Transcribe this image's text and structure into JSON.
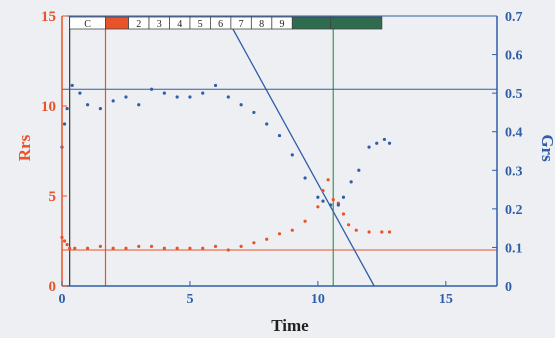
{
  "chart_data": {
    "type": "scatter",
    "xlabel": "Time",
    "ylabel_left": "Rrs",
    "ylabel_right": "Grs",
    "xlim": [
      0,
      17
    ],
    "ylim_left": [
      0,
      15
    ],
    "ylim_right": [
      0,
      0.7
    ],
    "x_ticks": [
      "0",
      "5",
      "10",
      "15"
    ],
    "y_left_ticks": [
      "0",
      "5",
      "10",
      "15"
    ],
    "y_right_ticks": [
      "0",
      "0.1",
      "0.2",
      "0.3",
      "0.4",
      "0.5",
      "0.6",
      "0.7"
    ],
    "segments": [
      {
        "label": "C",
        "x0": 0.3,
        "x1": 1.7,
        "fill": "#ffffff"
      },
      {
        "label": "",
        "x0": 1.7,
        "x1": 2.6,
        "fill": "#e8532a"
      },
      {
        "label": "2",
        "x0": 2.6,
        "x1": 3.4,
        "fill": "#ffffff"
      },
      {
        "label": "3",
        "x0": 3.4,
        "x1": 4.2,
        "fill": "#ffffff"
      },
      {
        "label": "4",
        "x0": 4.2,
        "x1": 5.0,
        "fill": "#ffffff"
      },
      {
        "label": "5",
        "x0": 5.0,
        "x1": 5.8,
        "fill": "#ffffff"
      },
      {
        "label": "6",
        "x0": 5.8,
        "x1": 6.6,
        "fill": "#ffffff"
      },
      {
        "label": "7",
        "x0": 6.6,
        "x1": 7.4,
        "fill": "#ffffff"
      },
      {
        "label": "8",
        "x0": 7.4,
        "x1": 8.2,
        "fill": "#ffffff"
      },
      {
        "label": "9",
        "x0": 8.2,
        "x1": 9.0,
        "fill": "#ffffff"
      },
      {
        "label": "",
        "x0": 9.0,
        "x1": 10.5,
        "fill": "#2e6b4f"
      },
      {
        "label": "",
        "x0": 10.5,
        "x1": 12.5,
        "fill": "#2e6b4f"
      }
    ],
    "reference_lines": {
      "vertical": [
        {
          "x": 0.3,
          "color": "#333333"
        },
        {
          "x": 1.7,
          "color": "#e8532a"
        },
        {
          "x": 10.6,
          "color": "#2e9a5a"
        }
      ],
      "horizontal_left": [
        {
          "y": 2.0,
          "color": "#e8532a"
        }
      ],
      "horizontal_right": [
        {
          "y": 0.51,
          "color": "#2f5ea8"
        }
      ],
      "regression_right": {
        "x0": 6.4,
        "y0": 0.7,
        "x1": 12.2,
        "y1": 0.0,
        "color": "#2f5ea8"
      }
    },
    "series": [
      {
        "name": "Rrs",
        "axis": "left",
        "color": "#e8532a",
        "x": [
          0.0,
          0.1,
          0.2,
          0.3,
          0.5,
          1.0,
          1.5,
          2.0,
          2.5,
          3.0,
          3.5,
          4.0,
          4.5,
          5.0,
          5.5,
          6.0,
          6.5,
          7.0,
          7.5,
          8.0,
          8.5,
          9.0,
          9.5,
          10.0,
          10.2,
          10.4,
          10.6,
          10.8,
          11.0,
          11.2,
          11.5,
          12.0,
          12.5,
          12.8
        ],
        "y": [
          2.7,
          2.5,
          2.3,
          2.1,
          2.1,
          2.1,
          2.2,
          2.1,
          2.1,
          2.2,
          2.2,
          2.1,
          2.1,
          2.1,
          2.1,
          2.2,
          2.0,
          2.2,
          2.4,
          2.6,
          2.9,
          3.1,
          3.6,
          4.4,
          5.3,
          5.9,
          4.8,
          4.6,
          4.0,
          3.4,
          3.1,
          3.0,
          3.0,
          3.0
        ]
      },
      {
        "name": "Grs",
        "axis": "right",
        "color": "#2f5ea8",
        "x": [
          0.0,
          0.1,
          0.2,
          0.4,
          0.7,
          1.0,
          1.5,
          2.0,
          2.5,
          3.0,
          3.5,
          4.0,
          4.5,
          5.0,
          5.5,
          6.0,
          6.5,
          7.0,
          7.5,
          8.0,
          8.5,
          9.0,
          9.5,
          10.0,
          10.2,
          10.5,
          10.8,
          11.0,
          11.3,
          11.6,
          12.0,
          12.3,
          12.6,
          12.8
        ],
        "y": [
          0.36,
          0.42,
          0.46,
          0.52,
          0.5,
          0.47,
          0.46,
          0.48,
          0.49,
          0.47,
          0.51,
          0.5,
          0.49,
          0.49,
          0.5,
          0.52,
          0.49,
          0.47,
          0.45,
          0.42,
          0.39,
          0.34,
          0.28,
          0.23,
          0.22,
          0.21,
          0.21,
          0.23,
          0.27,
          0.3,
          0.36,
          0.37,
          0.38,
          0.37
        ]
      }
    ]
  }
}
